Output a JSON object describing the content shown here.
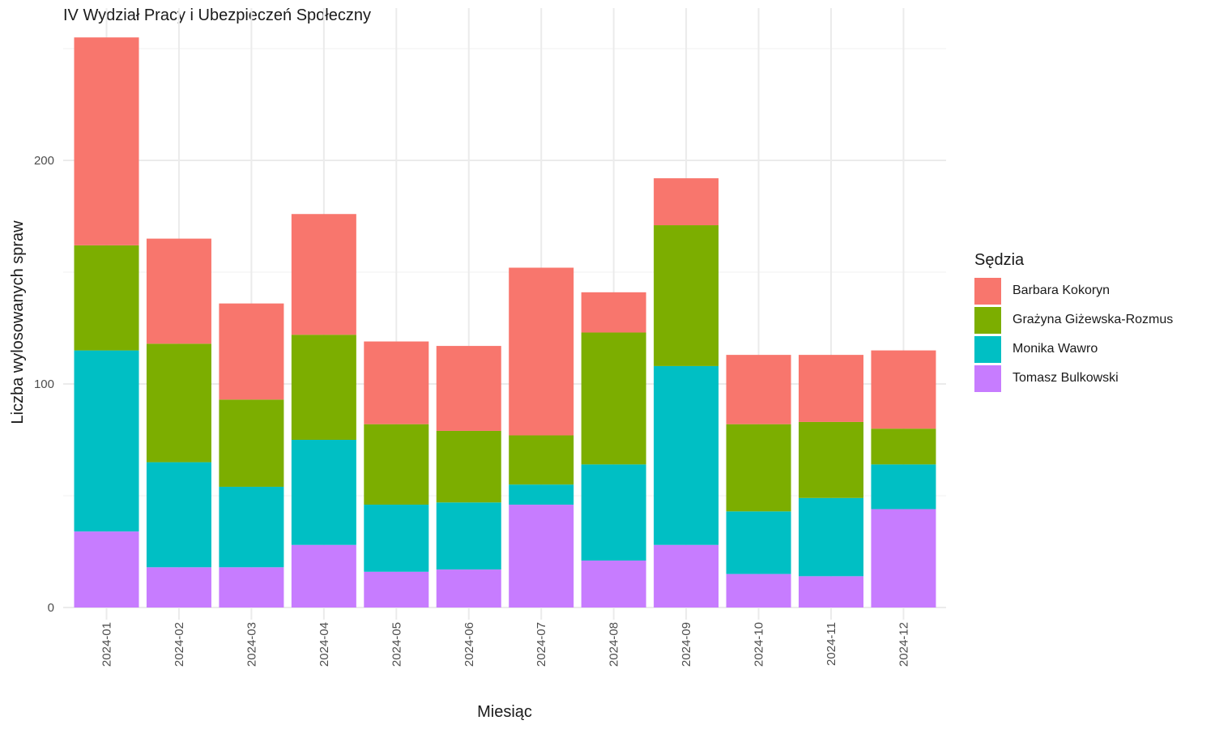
{
  "chart_data": {
    "type": "bar",
    "stacked": true,
    "title": "IV Wydział Pracy i Ubezpieczeń Społeczny",
    "xlabel": "Miesiąc",
    "ylabel": "Liczba wylosowanych spraw",
    "ylim": [
      0,
      255
    ],
    "yticks": [
      0,
      100,
      200
    ],
    "grid": true,
    "legend_title": "Sędzia",
    "legend_position": "right",
    "categories": [
      "2024-01",
      "2024-02",
      "2024-03",
      "2024-04",
      "2024-05",
      "2024-06",
      "2024-07",
      "2024-08",
      "2024-09",
      "2024-10",
      "2024-11",
      "2024-12"
    ],
    "series": [
      {
        "name": "Tomasz Bulkowski",
        "color": "#C77CFF",
        "values": [
          34,
          18,
          18,
          28,
          16,
          17,
          46,
          21,
          28,
          15,
          14,
          44
        ]
      },
      {
        "name": "Monika Wawro",
        "color": "#00BFC4",
        "values": [
          81,
          47,
          36,
          47,
          30,
          30,
          9,
          43,
          80,
          28,
          35,
          20
        ]
      },
      {
        "name": "Grażyna Giżewska-Rozmus",
        "color": "#7CAE00",
        "values": [
          47,
          53,
          39,
          47,
          36,
          32,
          22,
          59,
          63,
          39,
          34,
          16
        ]
      },
      {
        "name": "Barbara Kokoryn",
        "color": "#F8766D",
        "values": [
          93,
          47,
          43,
          54,
          37,
          38,
          75,
          18,
          21,
          31,
          30,
          35
        ]
      }
    ]
  }
}
